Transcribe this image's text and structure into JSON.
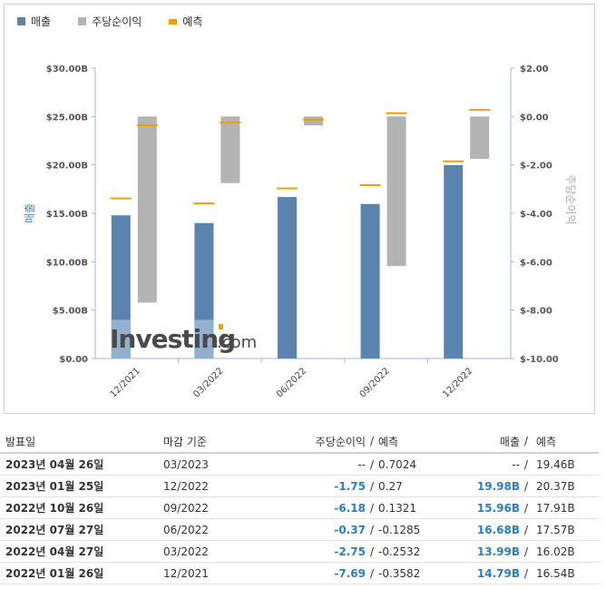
{
  "legend": {
    "revenue": "매출",
    "eps": "주당순이익",
    "forecast": "예측"
  },
  "colors": {
    "revenue": "#5b83b0",
    "eps": "#b3b3b3",
    "forecast": "#f0a000",
    "revenue_forecast_shade": "#9fb8d6"
  },
  "chart_data": {
    "type": "bar",
    "categories": [
      "12/2021",
      "03/2022",
      "06/2022",
      "09/2022",
      "12/2022"
    ],
    "ylabel": "매출",
    "y2label": "주당순이익",
    "ylim": [
      0,
      30
    ],
    "y2lim": [
      -10,
      2
    ],
    "y_ticks": [
      "$0.00",
      "$5.00B",
      "$10.00B",
      "$15.00B",
      "$20.00B",
      "$25.00B",
      "$30.00B"
    ],
    "y2_ticks": [
      "$-10.00",
      "$-8.00",
      "$-6.00",
      "$-4.00",
      "$-2.00",
      "$0.00",
      "$2.00"
    ],
    "series": [
      {
        "name": "매출",
        "axis": "left",
        "values": [
          14.79,
          13.99,
          16.68,
          15.96,
          19.98
        ]
      },
      {
        "name": "주당순이익",
        "axis": "right",
        "values": [
          -7.69,
          -2.75,
          -0.37,
          -6.18,
          -1.75
        ]
      },
      {
        "name": "예측",
        "kind": "revenue-forecast",
        "axis": "left",
        "values": [
          16.54,
          16.02,
          17.57,
          17.91,
          20.37
        ]
      },
      {
        "name": "예측",
        "kind": "eps-forecast",
        "axis": "right",
        "values": [
          -0.3582,
          -0.2532,
          -0.1285,
          0.1321,
          0.27
        ]
      }
    ],
    "grid": false
  },
  "watermark": "Investing.com",
  "table": {
    "headers": {
      "date": "발표일",
      "period": "마감 기준",
      "eps": "주당순이익",
      "sep": "/",
      "eps_forecast": "예측",
      "revenue": "매출",
      "revenue_forecast": "예측"
    },
    "rows": [
      {
        "date": "2023년 04월 26일",
        "period": "03/2023",
        "eps": "--",
        "eps_forecast": "0.7024",
        "revenue": "--",
        "revenue_forecast": "19.46B",
        "highlight": false
      },
      {
        "date": "2023년 01월 25일",
        "period": "12/2022",
        "eps": "-1.75",
        "eps_forecast": "0.27",
        "revenue": "19.98B",
        "revenue_forecast": "20.37B",
        "highlight": true
      },
      {
        "date": "2022년 10월 26일",
        "period": "09/2022",
        "eps": "-6.18",
        "eps_forecast": "0.1321",
        "revenue": "15.96B",
        "revenue_forecast": "17.91B",
        "highlight": true
      },
      {
        "date": "2022년 07월 27일",
        "period": "06/2022",
        "eps": "-0.37",
        "eps_forecast": "-0.1285",
        "revenue": "16.68B",
        "revenue_forecast": "17.57B",
        "highlight": true
      },
      {
        "date": "2022년 04월 27일",
        "period": "03/2022",
        "eps": "-2.75",
        "eps_forecast": "-0.2532",
        "revenue": "13.99B",
        "revenue_forecast": "16.02B",
        "highlight": true
      },
      {
        "date": "2022년 01월 26일",
        "period": "12/2021",
        "eps": "-7.69",
        "eps_forecast": "-0.3582",
        "revenue": "14.79B",
        "revenue_forecast": "16.54B",
        "highlight": true
      }
    ]
  }
}
